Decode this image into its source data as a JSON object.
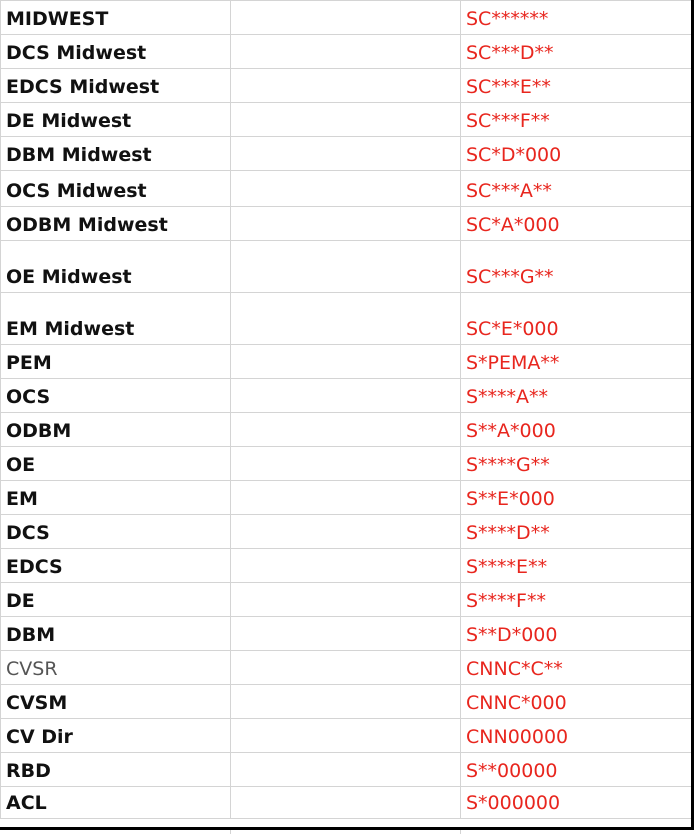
{
  "rows": [
    {
      "name": "MIDWEST",
      "code": "SC******",
      "h": 34
    },
    {
      "name": "DCS Midwest",
      "code": "SC***D**",
      "h": 34
    },
    {
      "name": "EDCS Midwest",
      "code": "SC***E**",
      "h": 34
    },
    {
      "name": "DE Midwest",
      "code": "SC***F**",
      "h": 34
    },
    {
      "name": "DBM Midwest",
      "code": "SC*D*000",
      "h": 34
    },
    {
      "name": "OCS Midwest",
      "code": "SC***A**",
      "h": 36
    },
    {
      "name": "ODBM Midwest",
      "code": "SC*A*000",
      "h": 34
    },
    {
      "name": "OE Midwest",
      "code": "SC***G**",
      "h": 52
    },
    {
      "name": "EM Midwest",
      "code": "SC*E*000",
      "h": 52
    },
    {
      "name": "PEM",
      "code": "S*PEMA**",
      "h": 34
    },
    {
      "name": "OCS",
      "code": "S****A**",
      "h": 34
    },
    {
      "name": "ODBM",
      "code": "S**A*000",
      "h": 34
    },
    {
      "name": "OE",
      "code": "S****G**",
      "h": 34
    },
    {
      "name": "EM",
      "code": "S**E*000",
      "h": 34
    },
    {
      "name": "DCS",
      "code": "S****D**",
      "h": 34
    },
    {
      "name": "EDCS",
      "code": "S****E**",
      "h": 34
    },
    {
      "name": "DE",
      "code": "S****F**",
      "h": 34
    },
    {
      "name": "DBM",
      "code": "S**D*000",
      "h": 34
    },
    {
      "name": "CVSR",
      "code": "CNNC*C**",
      "h": 34,
      "light": true
    },
    {
      "name": "CVSM",
      "code": "CNNC*000",
      "h": 34
    },
    {
      "name": "CV Dir",
      "code": "CNN00000",
      "h": 34
    },
    {
      "name": "RBD",
      "code": "S**00000",
      "h": 34
    },
    {
      "name": "ACL",
      "code": "S*000000",
      "h": 32
    }
  ]
}
